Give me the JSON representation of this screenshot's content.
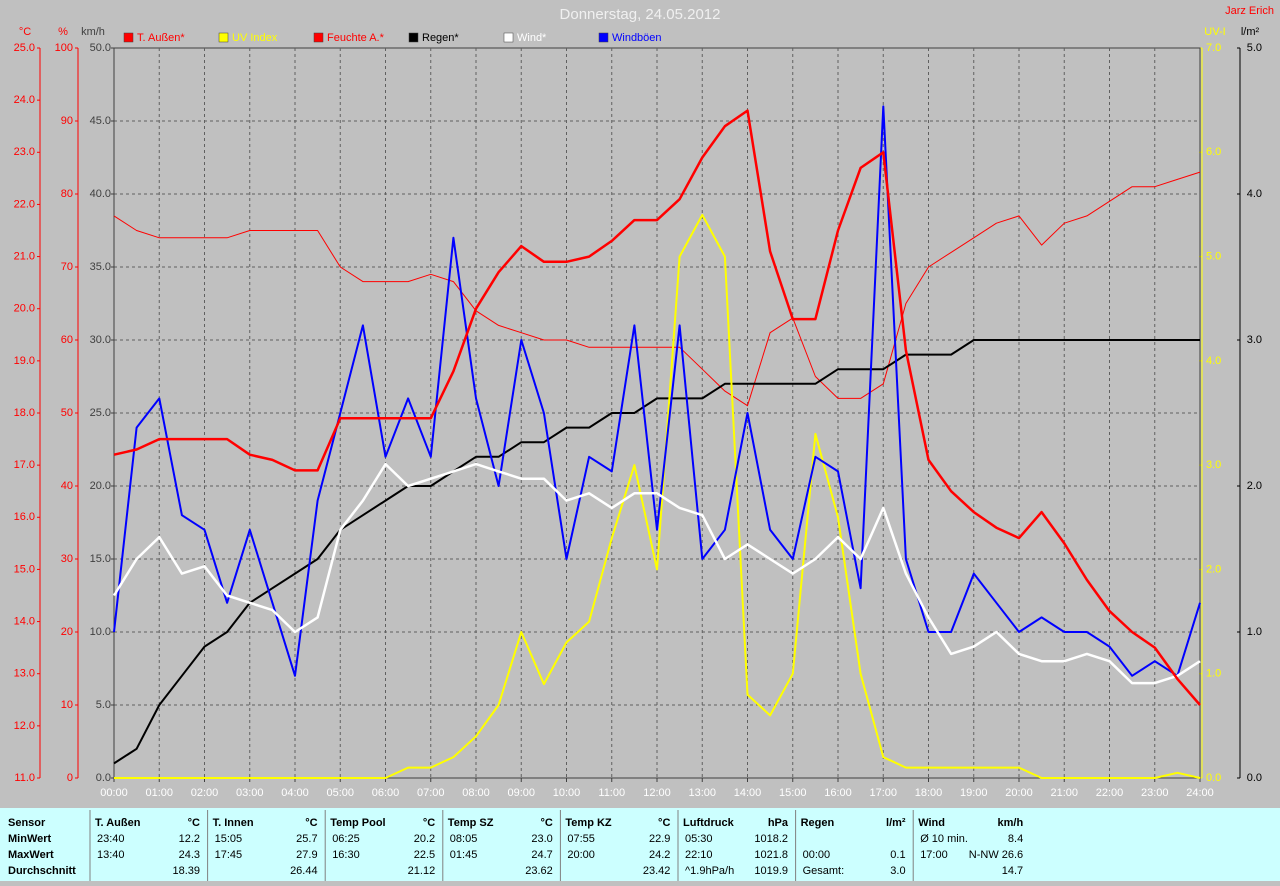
{
  "chart_data": {
    "type": "line",
    "title": "Donnerstag, 24.05.2012",
    "author": "Jarz Erich",
    "background": "#c0c0c0",
    "grid": true,
    "x": [
      0,
      0.5,
      1,
      1.5,
      2,
      2.5,
      3,
      3.5,
      4,
      4.5,
      5,
      5.5,
      6,
      6.5,
      7,
      7.5,
      8,
      8.5,
      9,
      9.5,
      10,
      10.5,
      11,
      11.5,
      12,
      12.5,
      13,
      13.5,
      14,
      14.5,
      15,
      15.5,
      16,
      16.5,
      17,
      17.5,
      18,
      18.5,
      19,
      19.5,
      20,
      20.5,
      21,
      21.5,
      22,
      22.5,
      23,
      23.5,
      24
    ],
    "xlim": [
      0,
      24
    ],
    "xticks": [
      {
        "value": 0,
        "label": "00:00"
      },
      {
        "value": 1,
        "label": "01:00"
      },
      {
        "value": 2,
        "label": "02:00"
      },
      {
        "value": 3,
        "label": "03:00"
      },
      {
        "value": 4,
        "label": "04:00"
      },
      {
        "value": 5,
        "label": "05:00"
      },
      {
        "value": 6,
        "label": "06:00"
      },
      {
        "value": 7,
        "label": "07:00"
      },
      {
        "value": 8,
        "label": "08:00"
      },
      {
        "value": 9,
        "label": "09:00"
      },
      {
        "value": 10,
        "label": "10:00"
      },
      {
        "value": 11,
        "label": "11:00"
      },
      {
        "value": 12,
        "label": "12:00"
      },
      {
        "value": 13,
        "label": "13:00"
      },
      {
        "value": 14,
        "label": "14:00"
      },
      {
        "value": 15,
        "label": "15:00"
      },
      {
        "value": 16,
        "label": "16:00"
      },
      {
        "value": 17,
        "label": "17:00"
      },
      {
        "value": 18,
        "label": "18:00"
      },
      {
        "value": 19,
        "label": "19:00"
      },
      {
        "value": 20,
        "label": "20:00"
      },
      {
        "value": 21,
        "label": "21:00"
      },
      {
        "value": 22,
        "label": "22:00"
      },
      {
        "value": 23,
        "label": "23:00"
      },
      {
        "value": 24,
        "label": "24:00"
      }
    ],
    "y_axes": [
      {
        "unit": "°C",
        "color": "#ff0000",
        "lim": [
          11,
          25
        ],
        "ticks": [
          {
            "value": 11,
            "label": "11.0"
          },
          {
            "value": 12,
            "label": "12.0"
          },
          {
            "value": 13,
            "label": "13.0"
          },
          {
            "value": 14,
            "label": "14.0"
          },
          {
            "value": 15,
            "label": "15.0"
          },
          {
            "value": 16,
            "label": "16.0"
          },
          {
            "value": 17,
            "label": "17.0"
          },
          {
            "value": 18,
            "label": "18.0"
          },
          {
            "value": 19,
            "label": "19.0"
          },
          {
            "value": 20,
            "label": "20.0"
          },
          {
            "value": 21,
            "label": "21.0"
          },
          {
            "value": 22,
            "label": "22.0"
          },
          {
            "value": 23,
            "label": "23.0"
          },
          {
            "value": 24,
            "label": "24.0"
          },
          {
            "value": 25,
            "label": "25.0"
          }
        ]
      },
      {
        "unit": "%",
        "color": "#ff0000",
        "lim": [
          0,
          100
        ],
        "ticks": [
          0,
          10,
          20,
          30,
          40,
          50,
          60,
          70,
          80,
          90,
          100
        ]
      },
      {
        "unit": "km/h",
        "color": "#404040",
        "lim": [
          0,
          50
        ],
        "ticks": [
          {
            "value": 0,
            "label": "0.0"
          },
          {
            "value": 5,
            "label": "5.0"
          },
          {
            "value": 10,
            "label": "10.0"
          },
          {
            "value": 15,
            "label": "15.0"
          },
          {
            "value": 20,
            "label": "20.0"
          },
          {
            "value": 25,
            "label": "25.0"
          },
          {
            "value": 30,
            "label": "30.0"
          },
          {
            "value": 35,
            "label": "35.0"
          },
          {
            "value": 40,
            "label": "40.0"
          },
          {
            "value": 45,
            "label": "45.0"
          },
          {
            "value": 50,
            "label": "50.0"
          }
        ]
      },
      {
        "unit": "UV-I",
        "color": "#ffff00",
        "lim": [
          0,
          7
        ],
        "ticks": [
          {
            "value": 0,
            "label": "0.0"
          },
          {
            "value": 1,
            "label": "1.0"
          },
          {
            "value": 2,
            "label": "2.0"
          },
          {
            "value": 3,
            "label": "3.0"
          },
          {
            "value": 4,
            "label": "4.0"
          },
          {
            "value": 5,
            "label": "5.0"
          },
          {
            "value": 6,
            "label": "6.0"
          },
          {
            "value": 7,
            "label": "7.0"
          }
        ]
      },
      {
        "unit": "l/m²",
        "color": "#000000",
        "lim": [
          0,
          5
        ],
        "ticks": [
          {
            "value": 0,
            "label": "0.0"
          },
          {
            "value": 1,
            "label": "1.0"
          },
          {
            "value": 2,
            "label": "2.0"
          },
          {
            "value": 3,
            "label": "3.0"
          },
          {
            "value": 4,
            "label": "4.0"
          },
          {
            "value": 5,
            "label": "5.0"
          }
        ]
      }
    ],
    "series": [
      {
        "name": "T. Außen*",
        "color": "#ff0000",
        "axis": 0,
        "width": 2.5,
        "values": [
          17.2,
          17.3,
          17.5,
          17.5,
          17.5,
          17.5,
          17.2,
          17.1,
          16.9,
          16.9,
          17.9,
          17.9,
          17.9,
          17.9,
          17.9,
          18.8,
          20.0,
          20.7,
          21.2,
          20.9,
          20.9,
          21.0,
          21.3,
          21.7,
          21.7,
          22.1,
          22.9,
          23.5,
          23.8,
          21.1,
          19.8,
          19.8,
          21.5,
          22.7,
          23.0,
          19.2,
          17.1,
          16.5,
          16.1,
          15.8,
          15.6,
          16.1,
          15.5,
          14.8,
          14.2,
          13.8,
          13.5,
          12.9,
          12.4
        ]
      },
      {
        "name": "UV Index",
        "color": "#ffff00",
        "axis": 3,
        "width": 2,
        "values": [
          0,
          0,
          0,
          0,
          0,
          0,
          0,
          0,
          0,
          0,
          0,
          0,
          0,
          0.1,
          0.1,
          0.2,
          0.4,
          0.7,
          1.4,
          0.9,
          1.3,
          1.5,
          2.3,
          3.0,
          2.0,
          5.0,
          5.4,
          5.0,
          0.8,
          0.6,
          1.0,
          3.3,
          2.5,
          1.0,
          0.2,
          0.1,
          0.1,
          0.1,
          0.1,
          0.1,
          0.1,
          0,
          0,
          0,
          0,
          0,
          0,
          0.05,
          0
        ]
      },
      {
        "name": "Feuchte A.*",
        "color": "#ff0000",
        "axis": 1,
        "width": 1,
        "values": [
          77,
          75,
          74,
          74,
          74,
          74,
          75,
          75,
          75,
          75,
          70,
          68,
          68,
          68,
          69,
          68,
          64,
          62,
          61,
          60,
          60,
          59,
          59,
          59,
          59,
          59,
          56,
          53,
          51,
          61,
          63,
          55,
          52,
          52,
          54,
          65,
          70,
          72,
          74,
          76,
          77,
          73,
          76,
          77,
          79,
          81,
          81,
          82,
          83
        ]
      },
      {
        "name": "Regen*",
        "color": "#000000",
        "axis": 4,
        "width": 2,
        "values": [
          0.1,
          0.2,
          0.5,
          0.7,
          0.9,
          1.0,
          1.2,
          1.3,
          1.4,
          1.5,
          1.7,
          1.8,
          1.9,
          2.0,
          2.0,
          2.1,
          2.2,
          2.2,
          2.3,
          2.3,
          2.4,
          2.4,
          2.5,
          2.5,
          2.6,
          2.6,
          2.6,
          2.7,
          2.7,
          2.7,
          2.7,
          2.7,
          2.8,
          2.8,
          2.8,
          2.9,
          2.9,
          2.9,
          3.0,
          3.0,
          3.0,
          3.0,
          3.0,
          3.0,
          3.0,
          3.0,
          3.0,
          3.0,
          3.0
        ]
      },
      {
        "name": "Wind*",
        "color": "#ffffff",
        "axis": 2,
        "width": 2.5,
        "values": [
          12.5,
          15,
          16.5,
          14,
          14.5,
          12.5,
          12,
          11.5,
          10,
          11,
          17,
          19,
          21.5,
          20,
          20.5,
          21,
          21.5,
          21,
          20.5,
          20.5,
          19,
          19.5,
          18.5,
          19.5,
          19.5,
          18.5,
          18,
          15,
          16,
          15,
          14,
          15,
          16.5,
          15,
          18.5,
          14,
          11,
          8.5,
          9,
          10,
          8.5,
          8,
          8,
          8.5,
          8,
          6.5,
          6.5,
          7,
          8
        ]
      },
      {
        "name": "Windböen",
        "color": "#0000ff",
        "axis": 2,
        "width": 2,
        "values": [
          10,
          24,
          26,
          18,
          17,
          12,
          17,
          12,
          7,
          19,
          25,
          31,
          22,
          26,
          22,
          37,
          26,
          20,
          30,
          25,
          15,
          22,
          21,
          31,
          17,
          31,
          15,
          17,
          25,
          17,
          15,
          22,
          21,
          13,
          46,
          15,
          10,
          10,
          14,
          12,
          10,
          11,
          10,
          10,
          9,
          7,
          8,
          7,
          12
        ]
      }
    ]
  },
  "stats": {
    "row_labels": [
      "Sensor",
      "MinWert",
      "MaxWert",
      "Durchschnitt"
    ],
    "columns": [
      {
        "name": "T. Außen",
        "unit": "°C",
        "rows": [
          [
            "23:40",
            "12.2"
          ],
          [
            "13:40",
            "24.3"
          ],
          [
            "18.39"
          ]
        ]
      },
      {
        "name": "T. Innen",
        "unit": "°C",
        "rows": [
          [
            "15:05",
            "25.7"
          ],
          [
            "17:45",
            "27.9"
          ],
          [
            "26.44"
          ]
        ]
      },
      {
        "name": "Temp Pool",
        "unit": "°C",
        "rows": [
          [
            "06:25",
            "20.2"
          ],
          [
            "16:30",
            "22.5"
          ],
          [
            "21.12"
          ]
        ]
      },
      {
        "name": "Temp SZ",
        "unit": "°C",
        "rows": [
          [
            "08:05",
            "23.0"
          ],
          [
            "01:45",
            "24.7"
          ],
          [
            "23.62"
          ]
        ]
      },
      {
        "name": "Temp KZ",
        "unit": "°C",
        "rows": [
          [
            "07:55",
            "22.9"
          ],
          [
            "20:00",
            "24.2"
          ],
          [
            "23.42"
          ]
        ]
      },
      {
        "name": "Luftdruck",
        "unit": "hPa",
        "rows": [
          [
            "05:30",
            "1018.2"
          ],
          [
            "22:10",
            "1021.8"
          ],
          [
            "^1.9hPa/h",
            "1019.9"
          ]
        ]
      },
      {
        "name": "Regen",
        "unit": "l/m²",
        "rows": [
          [],
          [
            "00:00",
            "0.1"
          ],
          [
            "Gesamt:",
            "3.0"
          ]
        ]
      },
      {
        "name": "Wind",
        "unit": "km/h",
        "rows": [
          [
            "Ø 10 min.",
            "8.4"
          ],
          [
            "17:00",
            "N-NW 26.6"
          ],
          [
            "14.7"
          ]
        ]
      }
    ]
  }
}
